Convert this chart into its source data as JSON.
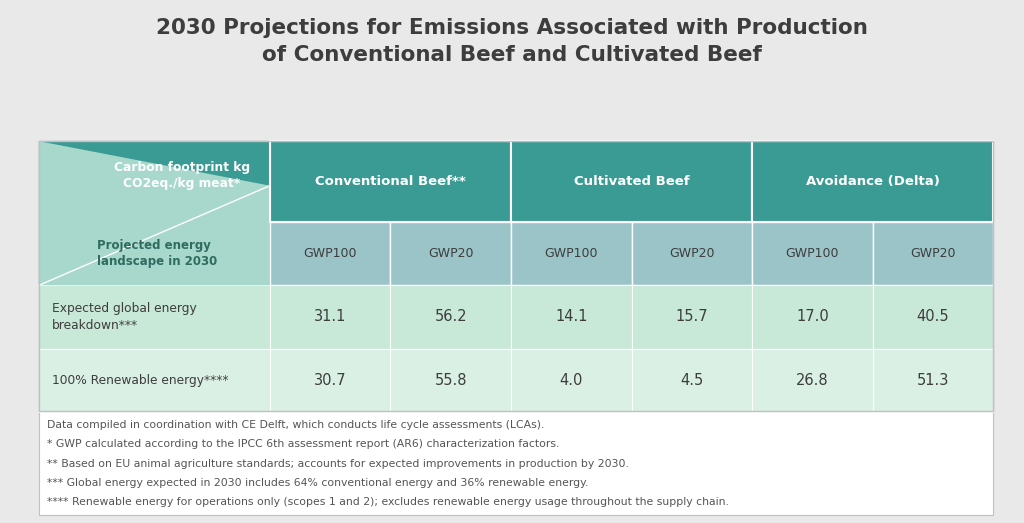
{
  "title": "2030 Projections for Emissions Associated with Production\nof Conventional Beef and Cultivated Beef",
  "title_fontsize": 15.5,
  "background_color": "#e9e9e9",
  "table_outer_bg": "#ffffff",
  "header_teal_dark": "#3a9b94",
  "header_teal_mid": "#4aada6",
  "subheader_blue_grey": "#9bc4c8",
  "label_col_green_light": "#a8d8cc",
  "row1_bg": "#c8e8d8",
  "row2_bg": "#daf0e4",
  "footnote_area_bg": "#ffffff",
  "col_label_top": "Carbon footprint kg\nCO2eq./kg meat*",
  "col_label_bottom": "Projected energy\nlandscape in 2030",
  "col_groups": [
    "Conventional Beef**",
    "Cultivated Beef",
    "Avoidance (Delta)"
  ],
  "col_subheaders": [
    "GWP100",
    "GWP20",
    "GWP100",
    "GWP20",
    "GWP100",
    "GWP20"
  ],
  "row1_label": "Expected global energy\nbreakdown***",
  "row2_label": "100% Renewable energy****",
  "row1_values": [
    "31.1",
    "56.2",
    "14.1",
    "15.7",
    "17.0",
    "40.5"
  ],
  "row2_values": [
    "30.7",
    "55.8",
    "4.0",
    "4.5",
    "26.8",
    "51.3"
  ],
  "footnotes": [
    "Data compiled in coordination with CE Delft, which conducts life cycle assessments (LCAs).",
    "* GWP calculated according to the IPCC 6th assessment report (AR6) characterization factors.",
    "** Based on EU animal agriculture standards; accounts for expected improvements in production by 2030.",
    "*** Global energy expected in 2030 includes 64% conventional energy and 36% renewable energy.",
    "**** Renewable energy for operations only (scopes 1 and 2); excludes renewable energy usage throughout the supply chain."
  ],
  "footnote_fontsize": 7.8,
  "text_dark": "#3d3d3d",
  "text_white": "#ffffff",
  "text_teal": "#4aada6",
  "cell_border_color": "#b0d0ca",
  "outer_border_color": "#c0c0c0"
}
